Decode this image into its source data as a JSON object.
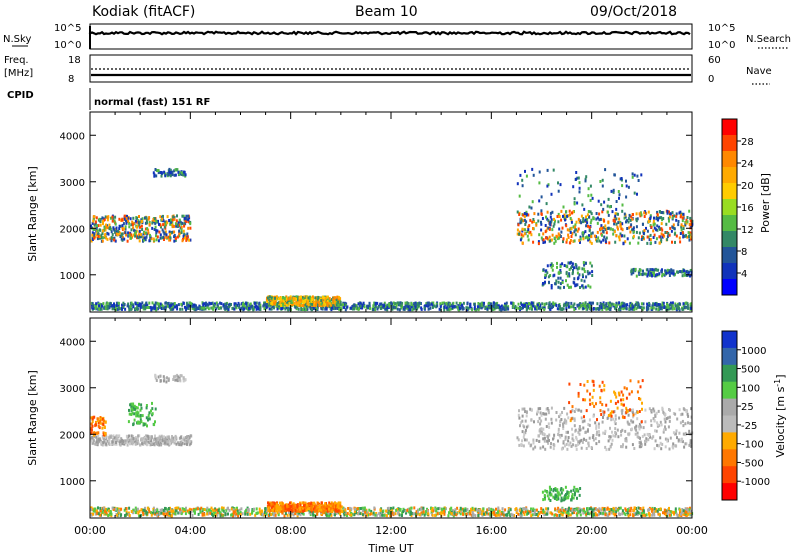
{
  "header": {
    "station": "Kodiak (fitACF)",
    "beam": "Beam 10",
    "date": "09/Oct/2018"
  },
  "nsky_panel": {
    "left_label": "N.Sky",
    "right_label": "N.Search",
    "left_ticks": [
      "10^5",
      "10^0"
    ],
    "right_ticks": [
      "10^5",
      "10^0"
    ]
  },
  "freq_panel": {
    "left_label_line1": "Freq.",
    "left_label_line2": "[MHz]",
    "right_label": "Nave",
    "left_ticks": [
      "18",
      "8"
    ],
    "right_ticks": [
      "60",
      "0"
    ]
  },
  "cpid": {
    "label": "CPID",
    "value": "normal (fast) 151 RF"
  },
  "chart_data": [
    {
      "type": "heatmap",
      "name": "power",
      "ylabel": "Slant Range [km]",
      "ylim": [
        200,
        4500
      ],
      "yticks": [
        1000,
        2000,
        3000,
        4000
      ],
      "xlim_hours": [
        0,
        24
      ],
      "colorbar": {
        "label": "Power [dB]",
        "ticks": [
          "28",
          "24",
          "20",
          "16",
          "12",
          "8",
          "4"
        ],
        "colors": [
          "#ff0000",
          "#ff4400",
          "#ff8800",
          "#ffaa00",
          "#ffcc00",
          "#99dd22",
          "#55bb44",
          "#338866",
          "#225599",
          "#1133bb",
          "#0000ff"
        ]
      }
    },
    {
      "type": "heatmap",
      "name": "velocity",
      "ylabel": "Slant Range [km]",
      "ylim": [
        200,
        4500
      ],
      "yticks": [
        1000,
        2000,
        3000,
        4000
      ],
      "xlim_hours": [
        0,
        24
      ],
      "xlabel": "Time UT",
      "xticks": [
        "00:00",
        "04:00",
        "08:00",
        "12:00",
        "16:00",
        "20:00",
        "00:00"
      ],
      "colorbar": {
        "label": "Velocity [m s",
        "label_sup": "-1",
        "label_end": "]",
        "ticks": [
          "1000",
          "500",
          "100",
          "25",
          "-25",
          "-100",
          "-500",
          "-1000"
        ],
        "colors": [
          "#1133cc",
          "#3366aa",
          "#339955",
          "#55cc44",
          "#aaaaaa",
          "#bbbbbb",
          "#ffaa00",
          "#ff7700",
          "#ff4400",
          "#ff0000"
        ]
      }
    }
  ]
}
